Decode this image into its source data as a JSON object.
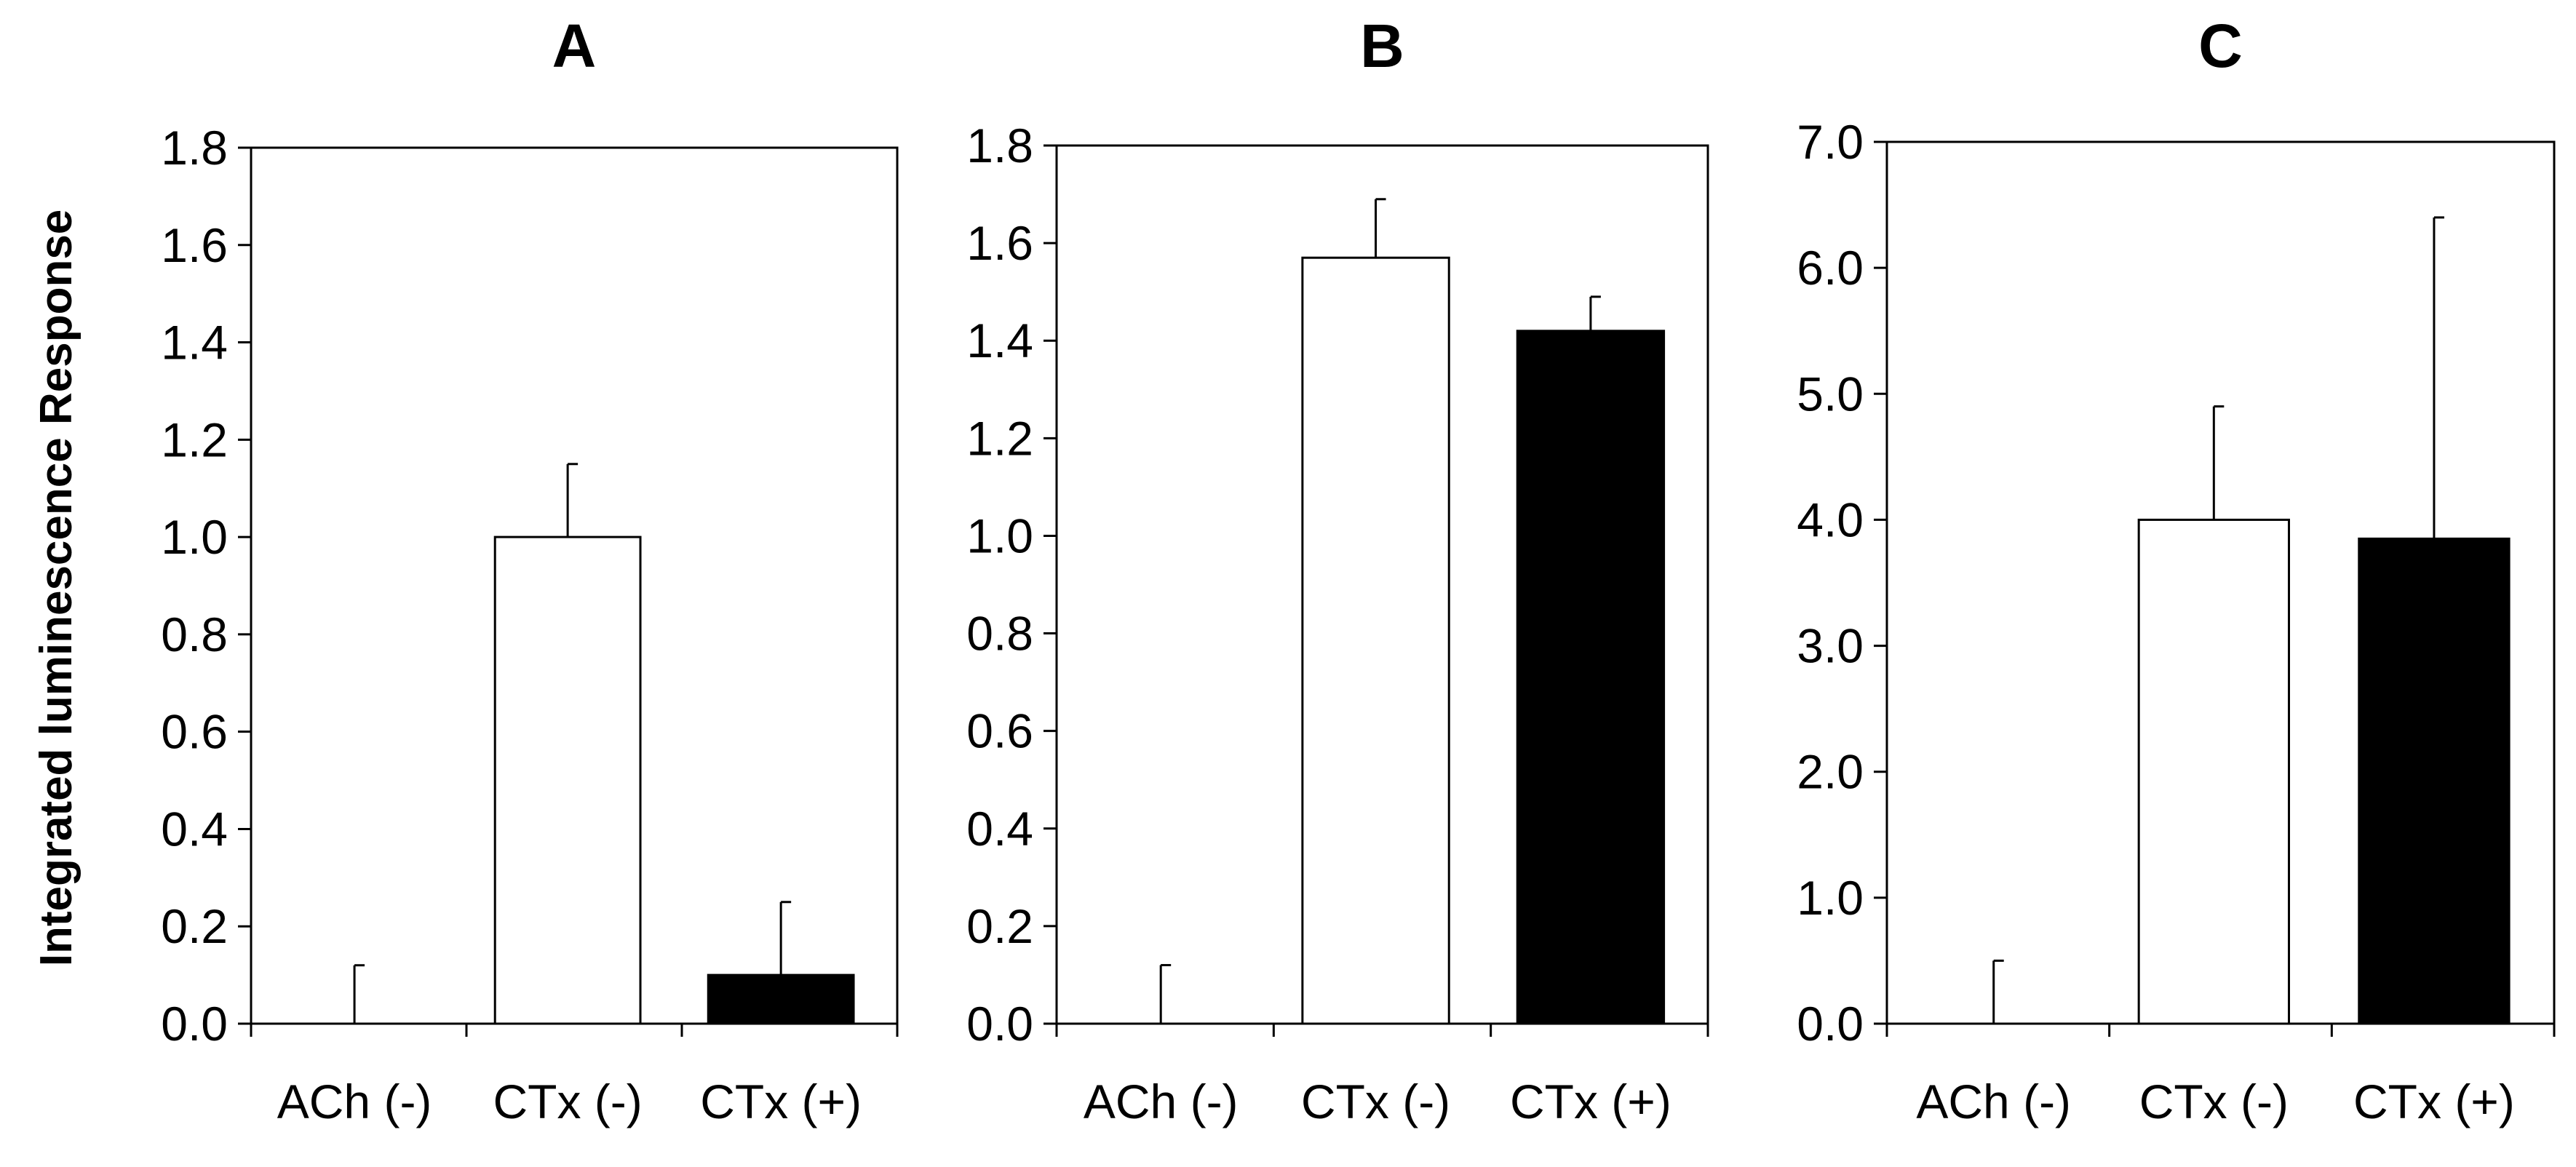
{
  "figure": {
    "ylabel": "Integrated luminescence Response"
  },
  "chart_data": [
    {
      "type": "bar",
      "title": "A",
      "categories": [
        "ACh (-)",
        "CTx (-)",
        "CTx (+)"
      ],
      "values": [
        0.0,
        1.0,
        0.1
      ],
      "errors": [
        0.12,
        0.15,
        0.15
      ],
      "bar_colors": [
        "#ffffff",
        "#ffffff",
        "#000000"
      ],
      "ylim": [
        0,
        1.8
      ],
      "yticks": [
        0.0,
        0.2,
        0.4,
        0.6,
        0.8,
        1.0,
        1.2,
        1.4,
        1.6,
        1.8
      ],
      "ytick_labels": [
        "0.0",
        "0.2",
        "0.4",
        "0.6",
        "0.8",
        "1.0",
        "1.2",
        "1.4",
        "1.6",
        "1.8"
      ],
      "xlabel": "",
      "ylabel": "Integrated luminescence Response",
      "grid": false
    },
    {
      "type": "bar",
      "title": "B",
      "categories": [
        "ACh (-)",
        "CTx (-)",
        "CTx (+)"
      ],
      "values": [
        0.0,
        1.57,
        1.42
      ],
      "errors": [
        0.12,
        0.12,
        0.07
      ],
      "bar_colors": [
        "#ffffff",
        "#ffffff",
        "#000000"
      ],
      "ylim": [
        0,
        1.8
      ],
      "yticks": [
        0.0,
        0.2,
        0.4,
        0.6,
        0.8,
        1.0,
        1.2,
        1.4,
        1.6,
        1.8
      ],
      "ytick_labels": [
        "0.0",
        "0.2",
        "0.4",
        "0.6",
        "0.8",
        "1.0",
        "1.2",
        "1.4",
        "1.6",
        "1.8"
      ],
      "xlabel": "",
      "ylabel": "",
      "grid": false
    },
    {
      "type": "bar",
      "title": "C",
      "categories": [
        "ACh (-)",
        "CTx (-)",
        "CTx (+)"
      ],
      "values": [
        0.0,
        4.0,
        3.85
      ],
      "errors": [
        0.5,
        0.9,
        2.55
      ],
      "bar_colors": [
        "#ffffff",
        "#ffffff",
        "#000000"
      ],
      "ylim": [
        0,
        7.0
      ],
      "yticks": [
        0.0,
        1.0,
        2.0,
        3.0,
        4.0,
        5.0,
        6.0,
        7.0
      ],
      "ytick_labels": [
        "0.0",
        "1.0",
        "2.0",
        "3.0",
        "4.0",
        "5.0",
        "6.0",
        "7.0"
      ],
      "xlabel": "",
      "ylabel": "",
      "grid": false
    }
  ]
}
